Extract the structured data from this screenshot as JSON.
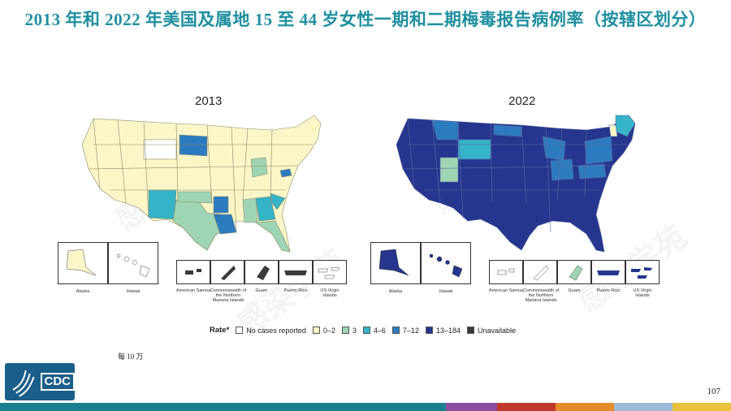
{
  "slide": {
    "title": "2013 年和 2022 年美国及属地 15 至 44 岁女性一期和二期梅毒报告病例率（按辖区划分）",
    "footnote": "每 10 万",
    "page_number": "107",
    "watermark_text": "感染学苑"
  },
  "colors": {
    "title": "#1f8fa0",
    "no_cases": "#ffffff",
    "rate_0_2": "#fbf6c8",
    "rate_3": "#9fd5b4",
    "rate_4_6": "#35b3c7",
    "rate_7_12": "#2d7bbf",
    "rate_13_184": "#26368e",
    "unavailable": "#3a3a3a"
  },
  "maps": [
    {
      "title": "2013",
      "insets": [
        "Alaska",
        "Hawaii",
        "American Samoa",
        "Commonwealth of the Northern Mariana Islands",
        "Guam",
        "Puerto Rico",
        "US Virgin Islands"
      ]
    },
    {
      "title": "2022",
      "insets": [
        "Alaska",
        "Hawaii",
        "American Samoa",
        "Commonwealth of the Northern Mariana Islands",
        "Guam",
        "Puerto Rico",
        "US Virgin Islands"
      ]
    }
  ],
  "legend": {
    "title": "Rate*",
    "items": [
      {
        "label": "No cases reported",
        "color": "#ffffff"
      },
      {
        "label": "0–2",
        "color": "#fbf6c8"
      },
      {
        "label": "3",
        "color": "#9fd5b4"
      },
      {
        "label": "4–6",
        "color": "#35b3c7"
      },
      {
        "label": "7–12",
        "color": "#2d7bbf"
      },
      {
        "label": "13–184",
        "color": "#26368e"
      },
      {
        "label": "Unavailable",
        "color": "#3a3a3a"
      }
    ]
  },
  "logo": {
    "text": "CDC"
  },
  "footer_colors": [
    "#1a7f8f",
    "#1a7f8f",
    "#1a7f8f",
    "#8e4c9e",
    "#c0392b",
    "#e58b2a",
    "#9dbbd9",
    "#e8c23a",
    "#2e86c1"
  ]
}
